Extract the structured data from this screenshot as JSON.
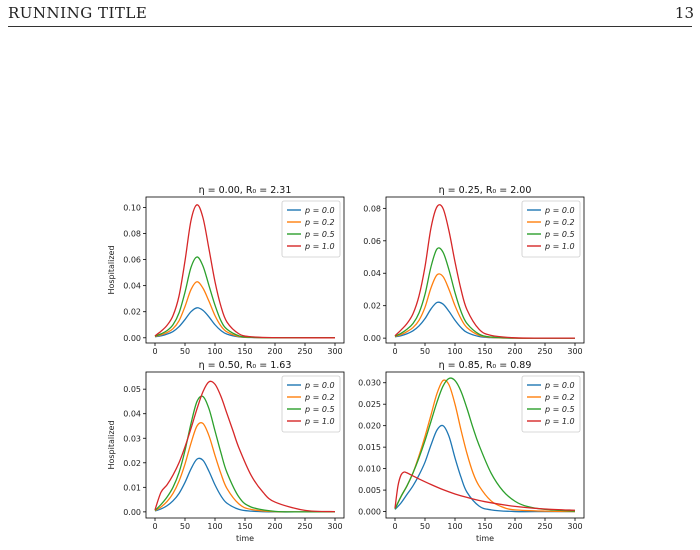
{
  "header": {
    "running_title": "RUNNING TITLE",
    "page_number": "13"
  },
  "chart_data": [
    {
      "type": "line",
      "title": "η = 0.00, R₀ = 2.31",
      "xlabel": "",
      "ylabel": "Hospitalized",
      "xlim": [
        -15,
        315
      ],
      "ylim": [
        -0.004,
        0.108
      ],
      "xticks": [
        0,
        50,
        100,
        150,
        200,
        250,
        300
      ],
      "yticks": [
        "0.00",
        "0.02",
        "0.04",
        "0.06",
        "0.08",
        "0.10"
      ],
      "legend_position": "top-right",
      "series": [
        {
          "name": "p = 0.0",
          "color": "#1f77b4",
          "x": [
            0,
            10,
            20,
            30,
            40,
            50,
            60,
            70,
            80,
            90,
            100,
            110,
            120,
            140,
            160,
            200,
            250,
            300
          ],
          "y": [
            0.0008,
            0.0015,
            0.0028,
            0.0048,
            0.0085,
            0.014,
            0.02,
            0.023,
            0.021,
            0.016,
            0.01,
            0.0055,
            0.0028,
            0.0007,
            0.0002,
            0.0,
            0.0,
            0.0
          ]
        },
        {
          "name": "p = 0.2",
          "color": "#ff7f0e",
          "x": [
            0,
            10,
            20,
            30,
            40,
            50,
            60,
            70,
            80,
            90,
            100,
            110,
            120,
            140,
            160,
            200,
            250,
            300
          ],
          "y": [
            0.001,
            0.0022,
            0.004,
            0.007,
            0.013,
            0.024,
            0.037,
            0.043,
            0.038,
            0.028,
            0.017,
            0.009,
            0.0045,
            0.001,
            0.0003,
            0.0,
            0.0,
            0.0
          ]
        },
        {
          "name": "p = 0.5",
          "color": "#2ca02c",
          "x": [
            0,
            10,
            20,
            30,
            40,
            50,
            60,
            70,
            80,
            90,
            100,
            110,
            120,
            140,
            160,
            200,
            250,
            300
          ],
          "y": [
            0.0012,
            0.003,
            0.0055,
            0.01,
            0.019,
            0.035,
            0.054,
            0.062,
            0.055,
            0.04,
            0.025,
            0.013,
            0.0065,
            0.0015,
            0.0004,
            0.0,
            0.0,
            0.0
          ]
        },
        {
          "name": "p = 1.0",
          "color": "#d62728",
          "x": [
            0,
            10,
            20,
            30,
            40,
            50,
            60,
            70,
            80,
            90,
            100,
            110,
            120,
            140,
            160,
            200,
            250,
            300
          ],
          "y": [
            0.0015,
            0.005,
            0.0095,
            0.017,
            0.032,
            0.059,
            0.09,
            0.102,
            0.092,
            0.068,
            0.043,
            0.024,
            0.012,
            0.003,
            0.0008,
            0.0001,
            0.0,
            0.0
          ]
        }
      ]
    },
    {
      "type": "line",
      "title": "η = 0.25, R₀ = 2.00",
      "xlabel": "",
      "ylabel": "",
      "xlim": [
        -15,
        315
      ],
      "ylim": [
        -0.003,
        0.087
      ],
      "xticks": [
        0,
        50,
        100,
        150,
        200,
        250,
        300
      ],
      "yticks": [
        "0.00",
        "0.02",
        "0.04",
        "0.06",
        "0.08"
      ],
      "legend_position": "top-right",
      "series": [
        {
          "name": "p = 0.0",
          "color": "#1f77b4",
          "x": [
            0,
            10,
            20,
            30,
            40,
            50,
            60,
            70,
            80,
            90,
            100,
            110,
            120,
            140,
            160,
            200,
            250,
            300
          ],
          "y": [
            0.0008,
            0.0015,
            0.0027,
            0.0045,
            0.0075,
            0.012,
            0.018,
            0.022,
            0.021,
            0.0165,
            0.011,
            0.0065,
            0.0035,
            0.001,
            0.0003,
            0.0,
            0.0,
            0.0
          ]
        },
        {
          "name": "p = 0.2",
          "color": "#ff7f0e",
          "x": [
            0,
            10,
            20,
            30,
            40,
            50,
            60,
            70,
            80,
            90,
            100,
            110,
            120,
            140,
            160,
            200,
            250,
            300
          ],
          "y": [
            0.001,
            0.0022,
            0.004,
            0.0065,
            0.011,
            0.019,
            0.031,
            0.039,
            0.038,
            0.03,
            0.02,
            0.012,
            0.0065,
            0.0018,
            0.0005,
            0.0,
            0.0,
            0.0
          ]
        },
        {
          "name": "p = 0.5",
          "color": "#2ca02c",
          "x": [
            0,
            10,
            20,
            30,
            40,
            50,
            60,
            70,
            80,
            90,
            100,
            110,
            120,
            140,
            160,
            200,
            250,
            300
          ],
          "y": [
            0.0012,
            0.003,
            0.0055,
            0.009,
            0.0155,
            0.027,
            0.044,
            0.055,
            0.053,
            0.042,
            0.028,
            0.0165,
            0.009,
            0.0025,
            0.0007,
            0.0001,
            0.0,
            0.0
          ]
        },
        {
          "name": "p = 1.0",
          "color": "#d62728",
          "x": [
            0,
            10,
            20,
            30,
            40,
            50,
            60,
            70,
            80,
            90,
            100,
            110,
            120,
            140,
            160,
            200,
            250,
            300
          ],
          "y": [
            0.0015,
            0.005,
            0.009,
            0.015,
            0.026,
            0.044,
            0.068,
            0.081,
            0.08,
            0.066,
            0.047,
            0.03,
            0.0175,
            0.0055,
            0.0017,
            0.0002,
            0.0,
            0.0
          ]
        }
      ]
    },
    {
      "type": "line",
      "title": "η = 0.50, R₀ = 1.63",
      "xlabel": "time",
      "ylabel": "Hospitalized",
      "xlim": [
        -15,
        315
      ],
      "ylim": [
        -0.0025,
        0.057
      ],
      "xticks": [
        0,
        50,
        100,
        150,
        200,
        250,
        300
      ],
      "yticks": [
        "0.00",
        "0.01",
        "0.02",
        "0.03",
        "0.04",
        "0.05"
      ],
      "legend_position": "top-right",
      "series": [
        {
          "name": "p = 0.0",
          "color": "#1f77b4",
          "x": [
            0,
            10,
            20,
            30,
            40,
            50,
            60,
            70,
            80,
            90,
            100,
            110,
            120,
            140,
            160,
            200,
            250,
            300
          ],
          "y": [
            0.0004,
            0.0012,
            0.0025,
            0.0045,
            0.0075,
            0.012,
            0.0175,
            0.0215,
            0.021,
            0.0165,
            0.011,
            0.0065,
            0.0035,
            0.001,
            0.0003,
            0.0,
            0.0,
            0.0
          ]
        },
        {
          "name": "p = 0.2",
          "color": "#ff7f0e",
          "x": [
            0,
            10,
            20,
            30,
            40,
            50,
            60,
            70,
            80,
            90,
            100,
            110,
            120,
            140,
            160,
            200,
            250,
            300
          ],
          "y": [
            0.0005,
            0.002,
            0.0042,
            0.0075,
            0.0125,
            0.0195,
            0.028,
            0.035,
            0.036,
            0.031,
            0.023,
            0.0155,
            0.0095,
            0.0032,
            0.001,
            0.0001,
            0.0,
            0.0
          ]
        },
        {
          "name": "p = 0.5",
          "color": "#2ca02c",
          "x": [
            0,
            10,
            20,
            30,
            40,
            50,
            60,
            70,
            80,
            90,
            100,
            110,
            120,
            140,
            160,
            200,
            250,
            300
          ],
          "y": [
            0.0006,
            0.003,
            0.006,
            0.01,
            0.016,
            0.025,
            0.036,
            0.045,
            0.047,
            0.042,
            0.033,
            0.024,
            0.016,
            0.006,
            0.002,
            0.0002,
            0.0,
            0.0
          ]
        },
        {
          "name": "p = 1.0",
          "color": "#d62728",
          "x": [
            0,
            10,
            20,
            30,
            40,
            50,
            60,
            70,
            80,
            90,
            100,
            110,
            120,
            130,
            140,
            160,
            180,
            200,
            250,
            300
          ],
          "y": [
            0.0008,
            0.008,
            0.011,
            0.015,
            0.02,
            0.0265,
            0.034,
            0.042,
            0.049,
            0.053,
            0.052,
            0.047,
            0.04,
            0.033,
            0.026,
            0.015,
            0.008,
            0.004,
            0.0006,
            0.0001
          ]
        }
      ]
    },
    {
      "type": "line",
      "title": "η = 0.85, R₀ = 0.89",
      "xlabel": "time",
      "ylabel": "",
      "xlim": [
        -15,
        315
      ],
      "ylim": [
        -0.0015,
        0.0325
      ],
      "xticks": [
        0,
        50,
        100,
        150,
        200,
        250,
        300
      ],
      "yticks": [
        "0.000",
        "0.005",
        "0.010",
        "0.015",
        "0.020",
        "0.025",
        "0.030"
      ],
      "legend_position": "top-right",
      "series": [
        {
          "name": "p = 0.0",
          "color": "#1f77b4",
          "x": [
            0,
            10,
            20,
            30,
            40,
            50,
            60,
            70,
            80,
            90,
            100,
            110,
            120,
            140,
            160,
            200,
            250,
            300
          ],
          "y": [
            0.0005,
            0.002,
            0.004,
            0.006,
            0.0085,
            0.0115,
            0.0155,
            0.019,
            0.02,
            0.0175,
            0.0125,
            0.008,
            0.0045,
            0.0013,
            0.0004,
            0.0,
            0.0,
            0.0
          ]
        },
        {
          "name": "p = 0.2",
          "color": "#ff7f0e",
          "x": [
            0,
            10,
            20,
            30,
            40,
            50,
            60,
            70,
            80,
            90,
            100,
            110,
            120,
            130,
            140,
            160,
            180,
            200,
            250,
            300
          ],
          "y": [
            0.0006,
            0.0035,
            0.006,
            0.009,
            0.013,
            0.0175,
            0.0225,
            0.0275,
            0.0305,
            0.0295,
            0.025,
            0.019,
            0.0135,
            0.009,
            0.006,
            0.0025,
            0.001,
            0.0004,
            0.0001,
            0.0
          ]
        },
        {
          "name": "p = 0.5",
          "color": "#2ca02c",
          "x": [
            0,
            10,
            20,
            30,
            40,
            50,
            60,
            70,
            80,
            90,
            100,
            110,
            120,
            130,
            140,
            160,
            180,
            200,
            220,
            250,
            300
          ],
          "y": [
            0.0006,
            0.0035,
            0.006,
            0.009,
            0.0125,
            0.0165,
            0.021,
            0.0255,
            0.0292,
            0.031,
            0.0305,
            0.028,
            0.024,
            0.0195,
            0.0155,
            0.009,
            0.0048,
            0.0024,
            0.0012,
            0.0005,
            0.0001
          ]
        },
        {
          "name": "p = 1.0",
          "color": "#d62728",
          "x": [
            0,
            5,
            10,
            15,
            20,
            30,
            40,
            60,
            80,
            100,
            120,
            150,
            200,
            250,
            300
          ],
          "y": [
            0.0008,
            0.006,
            0.0085,
            0.0092,
            0.009,
            0.0083,
            0.0076,
            0.0063,
            0.0051,
            0.0041,
            0.0033,
            0.0023,
            0.0012,
            0.0006,
            0.0003
          ]
        }
      ]
    }
  ]
}
